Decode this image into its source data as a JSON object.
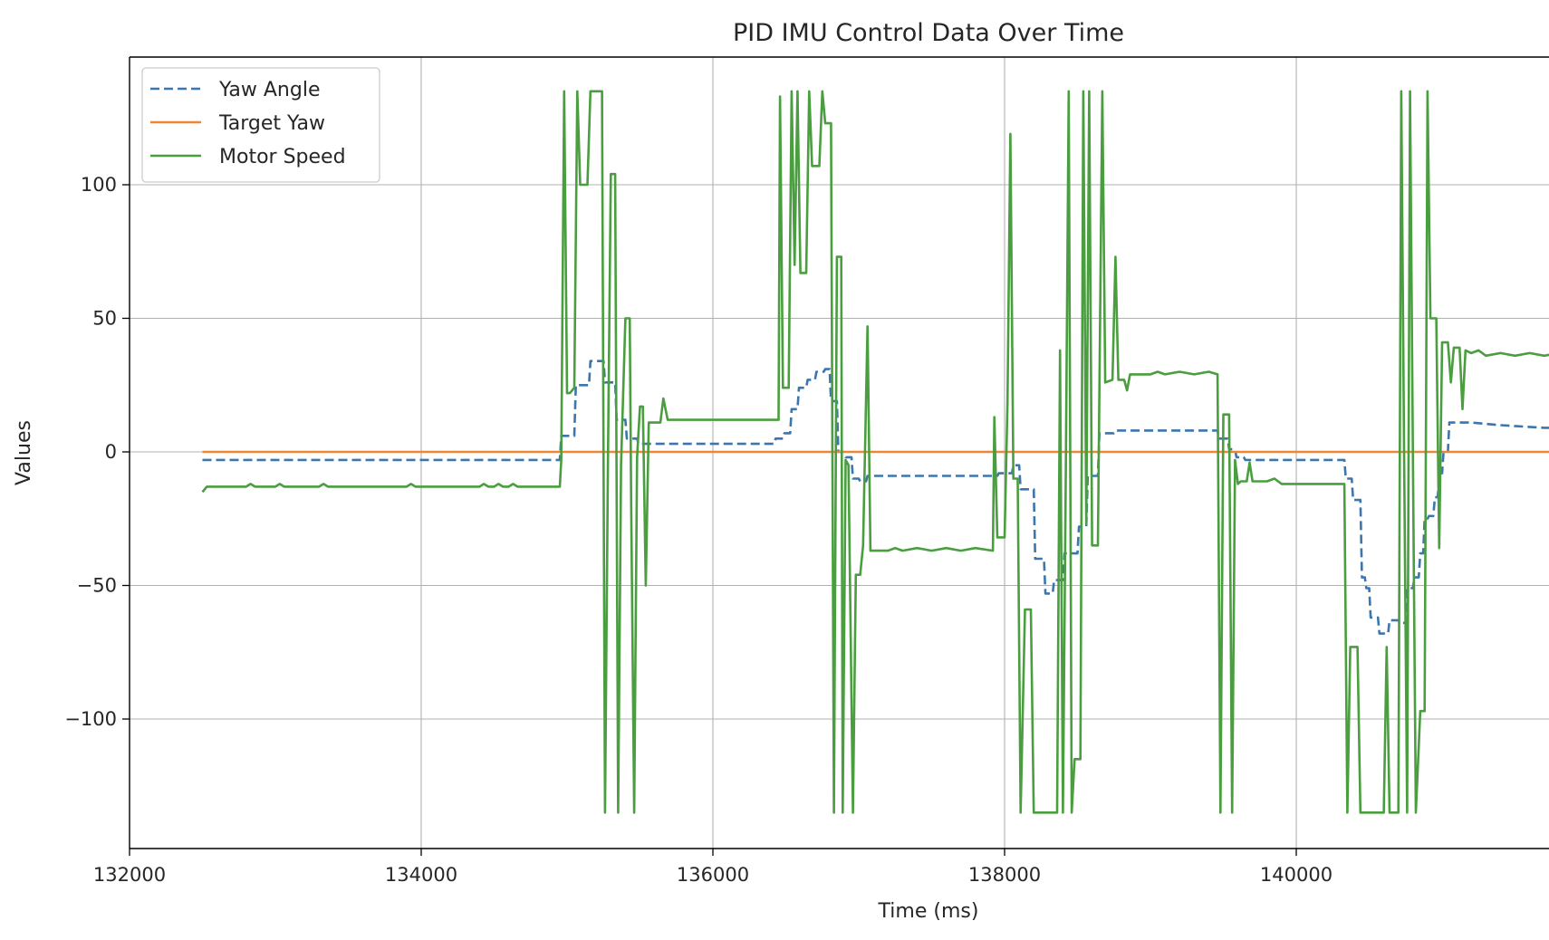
{
  "chart_data": {
    "type": "line",
    "title": "PID IMU Control Data Over Time",
    "xlabel": "Time (ms)",
    "ylabel": "Values",
    "xlim": [
      132000,
      142000
    ],
    "ylim": [
      -147,
      148
    ],
    "x_ticks": [
      132000,
      134000,
      136000,
      138000,
      140000
    ],
    "x_tick_labels": [
      "132000",
      "134000",
      "136000",
      "138000",
      "140000"
    ],
    "y_ticks": [
      100,
      50,
      0,
      -50,
      -100
    ],
    "y_tick_labels": [
      "100",
      "50",
      "0",
      "−50",
      "−100"
    ],
    "grid": true,
    "legend_position": "top-left",
    "series": [
      {
        "name": "Yaw Angle",
        "style": "dashed",
        "color": "#3b76af",
        "points": [
          [
            132500,
            -3
          ],
          [
            134950,
            -3
          ],
          [
            134960,
            6
          ],
          [
            135050,
            6
          ],
          [
            135060,
            25
          ],
          [
            135150,
            25
          ],
          [
            135160,
            34
          ],
          [
            135250,
            34
          ],
          [
            135260,
            26
          ],
          [
            135330,
            26
          ],
          [
            135340,
            12
          ],
          [
            135400,
            12
          ],
          [
            135410,
            5
          ],
          [
            135480,
            5
          ],
          [
            135490,
            3
          ],
          [
            136420,
            3
          ],
          [
            136430,
            5
          ],
          [
            136480,
            5
          ],
          [
            136490,
            7
          ],
          [
            136530,
            7
          ],
          [
            136540,
            16
          ],
          [
            136580,
            16
          ],
          [
            136590,
            24
          ],
          [
            136640,
            24
          ],
          [
            136650,
            27
          ],
          [
            136700,
            27
          ],
          [
            136710,
            30
          ],
          [
            136760,
            30
          ],
          [
            136770,
            31
          ],
          [
            136800,
            31
          ],
          [
            136810,
            19
          ],
          [
            136850,
            19
          ],
          [
            136860,
            0
          ],
          [
            136900,
            0
          ],
          [
            136910,
            -2
          ],
          [
            136950,
            -2
          ],
          [
            136960,
            -10
          ],
          [
            137000,
            -10
          ],
          [
            137010,
            -11
          ],
          [
            137050,
            -11
          ],
          [
            137060,
            -9
          ],
          [
            137950,
            -9
          ],
          [
            137960,
            -8
          ],
          [
            138050,
            -8
          ],
          [
            138060,
            -5
          ],
          [
            138100,
            -5
          ],
          [
            138110,
            -14
          ],
          [
            138200,
            -14
          ],
          [
            138210,
            -40
          ],
          [
            138270,
            -40
          ],
          [
            138280,
            -53
          ],
          [
            138330,
            -53
          ],
          [
            138340,
            -48
          ],
          [
            138400,
            -48
          ],
          [
            138410,
            -38
          ],
          [
            138500,
            -38
          ],
          [
            138510,
            -28
          ],
          [
            138560,
            -28
          ],
          [
            138570,
            -9
          ],
          [
            138640,
            -9
          ],
          [
            138650,
            7
          ],
          [
            138750,
            7
          ],
          [
            138760,
            8
          ],
          [
            139460,
            8
          ],
          [
            139470,
            5
          ],
          [
            139530,
            5
          ],
          [
            139540,
            1
          ],
          [
            139580,
            1
          ],
          [
            139590,
            -2
          ],
          [
            139640,
            -2
          ],
          [
            139650,
            -3
          ],
          [
            140330,
            -3
          ],
          [
            140340,
            -10
          ],
          [
            140380,
            -10
          ],
          [
            140390,
            -18
          ],
          [
            140440,
            -18
          ],
          [
            140450,
            -47
          ],
          [
            140470,
            -47
          ],
          [
            140480,
            -51
          ],
          [
            140500,
            -51
          ],
          [
            140510,
            -62
          ],
          [
            140560,
            -62
          ],
          [
            140570,
            -68
          ],
          [
            140630,
            -68
          ],
          [
            140640,
            -63
          ],
          [
            140700,
            -63
          ],
          [
            140710,
            -64
          ],
          [
            140750,
            -64
          ],
          [
            140760,
            -51
          ],
          [
            140800,
            -51
          ],
          [
            140810,
            -47
          ],
          [
            140840,
            -47
          ],
          [
            140850,
            -38
          ],
          [
            140870,
            -38
          ],
          [
            140880,
            -25
          ],
          [
            140900,
            -25
          ],
          [
            140910,
            -24
          ],
          [
            140940,
            -24
          ],
          [
            140950,
            -17
          ],
          [
            140970,
            -17
          ],
          [
            140980,
            -8
          ],
          [
            141000,
            -8
          ],
          [
            141010,
            0
          ],
          [
            141040,
            0
          ],
          [
            141050,
            11
          ],
          [
            141100,
            11
          ],
          [
            141200,
            11
          ],
          [
            141400,
            10
          ],
          [
            141700,
            9
          ],
          [
            142000,
            9
          ]
        ]
      },
      {
        "name": "Target Yaw",
        "style": "solid",
        "color": "#ef8636",
        "points": [
          [
            132500,
            0
          ],
          [
            142000,
            0
          ]
        ]
      },
      {
        "name": "Motor Speed",
        "style": "solid",
        "color": "#4a9e3f",
        "points": [
          [
            132500,
            -15
          ],
          [
            132530,
            -13
          ],
          [
            132800,
            -13
          ],
          [
            132830,
            -12
          ],
          [
            132860,
            -13
          ],
          [
            133000,
            -13
          ],
          [
            133030,
            -12
          ],
          [
            133060,
            -13
          ],
          [
            133300,
            -13
          ],
          [
            133330,
            -12
          ],
          [
            133360,
            -13
          ],
          [
            133900,
            -13
          ],
          [
            133930,
            -12
          ],
          [
            133960,
            -13
          ],
          [
            134400,
            -13
          ],
          [
            134430,
            -12
          ],
          [
            134460,
            -13
          ],
          [
            134500,
            -13
          ],
          [
            134530,
            -12
          ],
          [
            134560,
            -13
          ],
          [
            134600,
            -13
          ],
          [
            134630,
            -12
          ],
          [
            134660,
            -13
          ],
          [
            134950,
            -13
          ],
          [
            134960,
            -3
          ],
          [
            134980,
            135
          ],
          [
            135000,
            22
          ],
          [
            135020,
            22
          ],
          [
            135050,
            24
          ],
          [
            135070,
            135
          ],
          [
            135090,
            100
          ],
          [
            135140,
            100
          ],
          [
            135160,
            135
          ],
          [
            135240,
            135
          ],
          [
            135260,
            -135
          ],
          [
            135280,
            -5
          ],
          [
            135300,
            104
          ],
          [
            135330,
            104
          ],
          [
            135350,
            -135
          ],
          [
            135370,
            -5
          ],
          [
            135400,
            50
          ],
          [
            135430,
            50
          ],
          [
            135440,
            -20
          ],
          [
            135460,
            -135
          ],
          [
            135480,
            -2
          ],
          [
            135500,
            17
          ],
          [
            135520,
            17
          ],
          [
            135540,
            -50
          ],
          [
            135560,
            11
          ],
          [
            135640,
            11
          ],
          [
            135660,
            20
          ],
          [
            135690,
            12
          ],
          [
            136450,
            12
          ],
          [
            136460,
            133
          ],
          [
            136480,
            24
          ],
          [
            136520,
            24
          ],
          [
            136540,
            135
          ],
          [
            136560,
            70
          ],
          [
            136580,
            135
          ],
          [
            136600,
            67
          ],
          [
            136640,
            67
          ],
          [
            136660,
            135
          ],
          [
            136680,
            107
          ],
          [
            136730,
            107
          ],
          [
            136750,
            135
          ],
          [
            136770,
            123
          ],
          [
            136810,
            123
          ],
          [
            136830,
            -135
          ],
          [
            136850,
            73
          ],
          [
            136880,
            73
          ],
          [
            136890,
            -135
          ],
          [
            136910,
            -3
          ],
          [
            136930,
            -5
          ],
          [
            136960,
            -135
          ],
          [
            136980,
            -46
          ],
          [
            137010,
            -46
          ],
          [
            137030,
            -35
          ],
          [
            137060,
            47
          ],
          [
            137080,
            -37
          ],
          [
            137200,
            -37
          ],
          [
            137250,
            -36
          ],
          [
            137300,
            -37
          ],
          [
            137400,
            -36
          ],
          [
            137500,
            -37
          ],
          [
            137600,
            -36
          ],
          [
            137700,
            -37
          ],
          [
            137800,
            -36
          ],
          [
            137920,
            -37
          ],
          [
            137930,
            13
          ],
          [
            137950,
            -32
          ],
          [
            138000,
            -32
          ],
          [
            138020,
            18
          ],
          [
            138040,
            119
          ],
          [
            138060,
            -10
          ],
          [
            138090,
            -10
          ],
          [
            138110,
            -135
          ],
          [
            138140,
            -59
          ],
          [
            138180,
            -59
          ],
          [
            138200,
            -135
          ],
          [
            138360,
            -135
          ],
          [
            138380,
            38
          ],
          [
            138400,
            -135
          ],
          [
            138420,
            -7
          ],
          [
            138440,
            135
          ],
          [
            138460,
            -135
          ],
          [
            138480,
            -115
          ],
          [
            138520,
            -115
          ],
          [
            138540,
            135
          ],
          [
            138560,
            -27
          ],
          [
            138580,
            135
          ],
          [
            138600,
            -35
          ],
          [
            138640,
            -35
          ],
          [
            138670,
            135
          ],
          [
            138690,
            26
          ],
          [
            138740,
            27
          ],
          [
            138760,
            73
          ],
          [
            138780,
            27
          ],
          [
            138820,
            27
          ],
          [
            138840,
            23
          ],
          [
            138860,
            29
          ],
          [
            139000,
            29
          ],
          [
            139050,
            30
          ],
          [
            139100,
            29
          ],
          [
            139200,
            30
          ],
          [
            139300,
            29
          ],
          [
            139400,
            30
          ],
          [
            139460,
            29
          ],
          [
            139480,
            -135
          ],
          [
            139500,
            14
          ],
          [
            139540,
            14
          ],
          [
            139560,
            -135
          ],
          [
            139580,
            -3
          ],
          [
            139600,
            -12
          ],
          [
            139620,
            -11
          ],
          [
            139660,
            -11
          ],
          [
            139680,
            -4
          ],
          [
            139700,
            -11
          ],
          [
            139800,
            -11
          ],
          [
            139850,
            -10
          ],
          [
            139900,
            -12
          ],
          [
            140000,
            -12
          ],
          [
            140330,
            -12
          ],
          [
            140350,
            -135
          ],
          [
            140370,
            -73
          ],
          [
            140420,
            -73
          ],
          [
            140440,
            -135
          ],
          [
            140600,
            -135
          ],
          [
            140620,
            -73
          ],
          [
            140640,
            -135
          ],
          [
            140700,
            -135
          ],
          [
            140720,
            135
          ],
          [
            140740,
            -3
          ],
          [
            140760,
            -135
          ],
          [
            140780,
            135
          ],
          [
            140800,
            -3
          ],
          [
            140820,
            -135
          ],
          [
            140850,
            -97
          ],
          [
            140880,
            -97
          ],
          [
            140900,
            135
          ],
          [
            140920,
            50
          ],
          [
            140960,
            50
          ],
          [
            140980,
            -36
          ],
          [
            141000,
            41
          ],
          [
            141040,
            41
          ],
          [
            141060,
            26
          ],
          [
            141080,
            39
          ],
          [
            141120,
            39
          ],
          [
            141140,
            16
          ],
          [
            141160,
            38
          ],
          [
            141200,
            37
          ],
          [
            141250,
            38
          ],
          [
            141300,
            36
          ],
          [
            141400,
            37
          ],
          [
            141500,
            36
          ],
          [
            141600,
            37
          ],
          [
            141700,
            36
          ],
          [
            141800,
            37
          ],
          [
            141900,
            36
          ],
          [
            142000,
            37
          ]
        ]
      }
    ]
  }
}
